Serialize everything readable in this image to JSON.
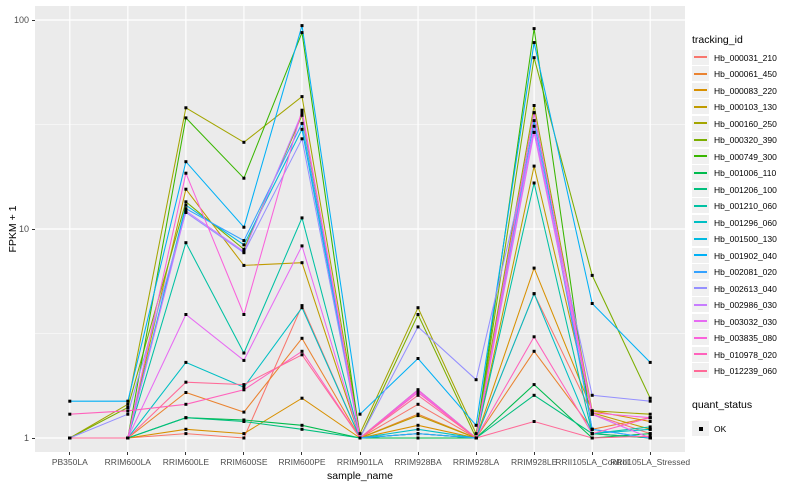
{
  "figure": {
    "panel_bg": "#EBEBEB",
    "grid_color": "#FFFFFF",
    "tick_label_color": "#4D4D4D",
    "point_color": "#000000",
    "legend_key_bg": "#F0F0F0"
  },
  "axes": {
    "x_title": "sample_name",
    "y_title": "FPKM + 1",
    "y_tick_labels": [
      "1",
      "10",
      "100"
    ],
    "y_tick_values": [
      1,
      10,
      100
    ]
  },
  "legend": {
    "tracking_title": "tracking_id",
    "quant_title": "quant_status",
    "quant_items": [
      {
        "label": "OK",
        "marker": "filled-square"
      }
    ]
  },
  "chart_data": {
    "type": "line",
    "x_type": "categorical",
    "y_scale": "log10",
    "ylim": [
      1,
      100
    ],
    "grid": true,
    "legend_position": "right",
    "point_marker": "filled-square",
    "title": "",
    "xlabel": "sample_name",
    "ylabel": "FPKM + 1",
    "categories": [
      "PB350LA",
      "RRIM600LA",
      "RRIM600LE",
      "RRIM600SE",
      "RRIM600PE",
      "RRIM901LA",
      "RRIM928BA",
      "RRIM928LA",
      "RRIM928LE",
      "RRII105LA_Control",
      "RRII105LA_Stressed"
    ],
    "series": [
      {
        "name": "Hb_000031_210",
        "color": "#F8766D",
        "values": [
          1.0,
          1.0,
          1.05,
          1.0,
          4.3,
          1.0,
          1.45,
          1.0,
          4.9,
          1.3,
          1.05
        ]
      },
      {
        "name": "Hb_000061_450",
        "color": "#EA8331",
        "values": [
          1.0,
          1.0,
          1.65,
          1.33,
          3.0,
          1.0,
          1.3,
          1.0,
          2.6,
          1.1,
          1.25
        ]
      },
      {
        "name": "Hb_000083_220",
        "color": "#D89000",
        "values": [
          1.0,
          1.0,
          1.1,
          1.05,
          1.55,
          1.0,
          1.15,
          1.0,
          6.5,
          1.35,
          1.2
        ]
      },
      {
        "name": "Hb_000103_130",
        "color": "#C09B00",
        "values": [
          1.0,
          1.0,
          15.5,
          6.7,
          6.9,
          1.0,
          1.28,
          1.0,
          20.0,
          1.32,
          1.1
        ]
      },
      {
        "name": "Hb_000160_250",
        "color": "#A3A500",
        "values": [
          1.0,
          1.45,
          38.0,
          26.0,
          43.0,
          1.05,
          4.2,
          1.05,
          39.0,
          1.35,
          1.3
        ]
      },
      {
        "name": "Hb_000320_390",
        "color": "#7CAE00",
        "values": [
          1.0,
          1.4,
          13.5,
          8.0,
          35.0,
          1.0,
          3.9,
          1.0,
          66.0,
          6.0,
          1.55
        ]
      },
      {
        "name": "Hb_000749_300",
        "color": "#39B600",
        "values": [
          1.0,
          1.0,
          34.0,
          17.5,
          87.0,
          1.0,
          1.05,
          1.0,
          91.0,
          1.05,
          1.0
        ]
      },
      {
        "name": "Hb_001006_110",
        "color": "#00BB4E",
        "values": [
          1.0,
          1.0,
          1.25,
          1.22,
          1.15,
          1.0,
          1.0,
          1.0,
          1.8,
          1.0,
          1.05
        ]
      },
      {
        "name": "Hb_001206_100",
        "color": "#00BF7D",
        "values": [
          1.0,
          1.0,
          1.25,
          1.2,
          1.1,
          1.0,
          1.05,
          1.0,
          1.6,
          1.05,
          1.0
        ]
      },
      {
        "name": "Hb_001210_060",
        "color": "#00C1A3",
        "values": [
          1.0,
          1.0,
          8.6,
          2.55,
          11.3,
          1.0,
          1.7,
          1.0,
          16.6,
          1.05,
          1.13
        ]
      },
      {
        "name": "Hb_001296_060",
        "color": "#00BFC4",
        "values": [
          1.0,
          1.0,
          2.3,
          1.75,
          4.2,
          1.0,
          1.1,
          1.0,
          4.9,
          1.05,
          1.1
        ]
      },
      {
        "name": "Hb_001500_130",
        "color": "#00BAE0",
        "values": [
          1.0,
          1.0,
          13.0,
          8.4,
          30.0,
          1.0,
          1.05,
          1.0,
          36.0,
          1.1,
          1.0
        ]
      },
      {
        "name": "Hb_001902_040",
        "color": "#00B0F6",
        "values": [
          1.5,
          1.5,
          21.0,
          10.2,
          94.0,
          1.3,
          2.4,
          1.15,
          78.0,
          4.4,
          2.3
        ]
      },
      {
        "name": "Hb_002081_020",
        "color": "#35A2FF",
        "values": [
          1.0,
          1.0,
          12.5,
          8.8,
          32.0,
          1.0,
          1.05,
          1.0,
          33.0,
          1.1,
          1.0
        ]
      },
      {
        "name": "Hb_002613_040",
        "color": "#9590FF",
        "values": [
          1.0,
          1.3,
          12.0,
          7.7,
          27.0,
          1.0,
          3.4,
          1.9,
          29.0,
          1.6,
          1.5
        ]
      },
      {
        "name": "Hb_002986_030",
        "color": "#C77CFF",
        "values": [
          1.0,
          1.0,
          12.2,
          7.8,
          36.0,
          1.0,
          1.65,
          1.0,
          31.0,
          1.3,
          1.0
        ]
      },
      {
        "name": "Hb_003032_030",
        "color": "#E76BF3",
        "values": [
          1.0,
          1.0,
          3.9,
          2.35,
          8.3,
          1.0,
          1.68,
          1.0,
          29.0,
          1.3,
          1.0
        ]
      },
      {
        "name": "Hb_003835_080",
        "color": "#FA62DB",
        "values": [
          1.0,
          1.0,
          18.5,
          3.9,
          37.0,
          1.0,
          1.7,
          1.0,
          36.0,
          1.32,
          1.25
        ]
      },
      {
        "name": "Hb_010978_020",
        "color": "#FF62BC",
        "values": [
          1.3,
          1.35,
          1.45,
          1.7,
          2.6,
          1.0,
          1.65,
          1.0,
          3.05,
          1.05,
          1.25
        ]
      },
      {
        "name": "Hb_012239_060",
        "color": "#FF6A98",
        "values": [
          1.0,
          1.0,
          1.85,
          1.8,
          2.5,
          1.0,
          1.6,
          1.0,
          1.2,
          1.0,
          1.02
        ]
      }
    ]
  }
}
